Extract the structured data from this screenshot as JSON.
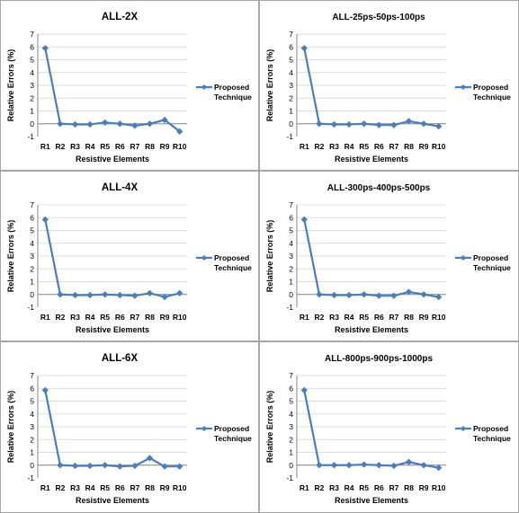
{
  "chart_data": [
    {
      "type": "line",
      "title": "ALL-2X",
      "xlabel": "Resistive Elements",
      "ylabel": "Relative Errors (%)",
      "ylim": [
        -1,
        7
      ],
      "yticks": [
        "-1",
        "0",
        "1",
        "2",
        "3",
        "4",
        "5",
        "6",
        "7"
      ],
      "categories": [
        "R1",
        "R2",
        "R3",
        "R4",
        "R5",
        "R6",
        "R7",
        "R8",
        "R9",
        "R10"
      ],
      "series": [
        {
          "name": "Proposed Technique",
          "values": [
            5.9,
            0.0,
            -0.05,
            -0.05,
            0.1,
            0.0,
            -0.15,
            0.0,
            0.3,
            -0.6
          ]
        }
      ],
      "legend": {
        "position": "right",
        "lines": [
          "Proposed",
          "Technique"
        ]
      },
      "grid": true
    },
    {
      "type": "line",
      "title": "ALL-25ps-50ps-100ps",
      "xlabel": "Resistive Elements",
      "ylabel": "Relative Errors (%)",
      "ylim": [
        -1,
        7
      ],
      "yticks": [
        "-1",
        "0",
        "1",
        "2",
        "3",
        "4",
        "5",
        "6",
        "7"
      ],
      "categories": [
        "R1",
        "R2",
        "R3",
        "R4",
        "R5",
        "R6",
        "R7",
        "R8",
        "R9",
        "R10"
      ],
      "series": [
        {
          "name": "Proposed Technique",
          "values": [
            5.9,
            0.0,
            -0.05,
            -0.05,
            0.0,
            -0.1,
            -0.1,
            0.2,
            0.0,
            -0.2
          ]
        }
      ],
      "legend": {
        "position": "right",
        "lines": [
          "Proposed",
          "Technique"
        ]
      },
      "grid": true
    },
    {
      "type": "line",
      "title": "ALL-4X",
      "xlabel": "Resistive Elements",
      "ylabel": "Relative Errors (%)",
      "ylim": [
        -1,
        7
      ],
      "yticks": [
        "-1",
        "0",
        "1",
        "2",
        "3",
        "4",
        "5",
        "6",
        "7"
      ],
      "categories": [
        "R1",
        "R2",
        "R3",
        "R4",
        "R5",
        "R6",
        "R7",
        "R8",
        "R9",
        "R10"
      ],
      "series": [
        {
          "name": "Proposed Technique",
          "values": [
            5.85,
            0.0,
            -0.05,
            -0.05,
            0.0,
            -0.05,
            -0.1,
            0.1,
            -0.2,
            0.1
          ]
        }
      ],
      "legend": {
        "position": "right",
        "lines": [
          "Proposed",
          "Technique"
        ]
      },
      "grid": true
    },
    {
      "type": "line",
      "title": "ALL-300ps-400ps-500ps",
      "xlabel": "Resistive Elements",
      "ylabel": "Relative Errors (%)",
      "ylim": [
        -1,
        7
      ],
      "yticks": [
        "-1",
        "0",
        "1",
        "2",
        "3",
        "4",
        "5",
        "6",
        "7"
      ],
      "categories": [
        "R1",
        "R2",
        "R3",
        "R4",
        "R5",
        "R6",
        "R7",
        "R8",
        "R9",
        "R10"
      ],
      "series": [
        {
          "name": "Proposed Technique",
          "values": [
            5.85,
            0.0,
            -0.05,
            -0.05,
            0.0,
            -0.1,
            -0.1,
            0.2,
            0.0,
            -0.2
          ]
        }
      ],
      "legend": {
        "position": "right",
        "lines": [
          "Proposed",
          "Technique"
        ]
      },
      "grid": true
    },
    {
      "type": "line",
      "title": "ALL-6X",
      "xlabel": "Resistive Elements",
      "ylabel": "Relative Errors (%)",
      "ylim": [
        -1,
        7
      ],
      "yticks": [
        "-1",
        "0",
        "1",
        "2",
        "3",
        "4",
        "5",
        "6",
        "7"
      ],
      "categories": [
        "R1",
        "R2",
        "R3",
        "R4",
        "R5",
        "R6",
        "R7",
        "R8",
        "R9",
        "R10"
      ],
      "series": [
        {
          "name": "Proposed Technique",
          "values": [
            5.85,
            0.0,
            -0.05,
            -0.05,
            0.0,
            -0.1,
            -0.05,
            0.55,
            -0.1,
            -0.1
          ]
        }
      ],
      "legend": {
        "position": "right",
        "lines": [
          "Proposed",
          "Technique"
        ]
      },
      "grid": true
    },
    {
      "type": "line",
      "title": "ALL-800ps-900ps-1000ps",
      "xlabel": "Resistive Elements",
      "ylabel": "Relative Errors (%)",
      "ylim": [
        -1,
        7
      ],
      "yticks": [
        "-1",
        "0",
        "1",
        "2",
        "3",
        "4",
        "5",
        "6",
        "7"
      ],
      "categories": [
        "R1",
        "R2",
        "R3",
        "R4",
        "R5",
        "R6",
        "R7",
        "R8",
        "R9",
        "R10"
      ],
      "series": [
        {
          "name": "Proposed Technique",
          "values": [
            5.85,
            0.0,
            0.0,
            0.0,
            0.05,
            0.0,
            -0.05,
            0.25,
            0.0,
            -0.2
          ]
        }
      ],
      "legend": {
        "position": "right",
        "lines": [
          "Proposed",
          "Technique"
        ]
      },
      "grid": true
    }
  ],
  "colors": {
    "series": "#4a7ebb",
    "grid": "#d0d0d0",
    "border": "#a6a6a6",
    "axis": "#868686"
  }
}
